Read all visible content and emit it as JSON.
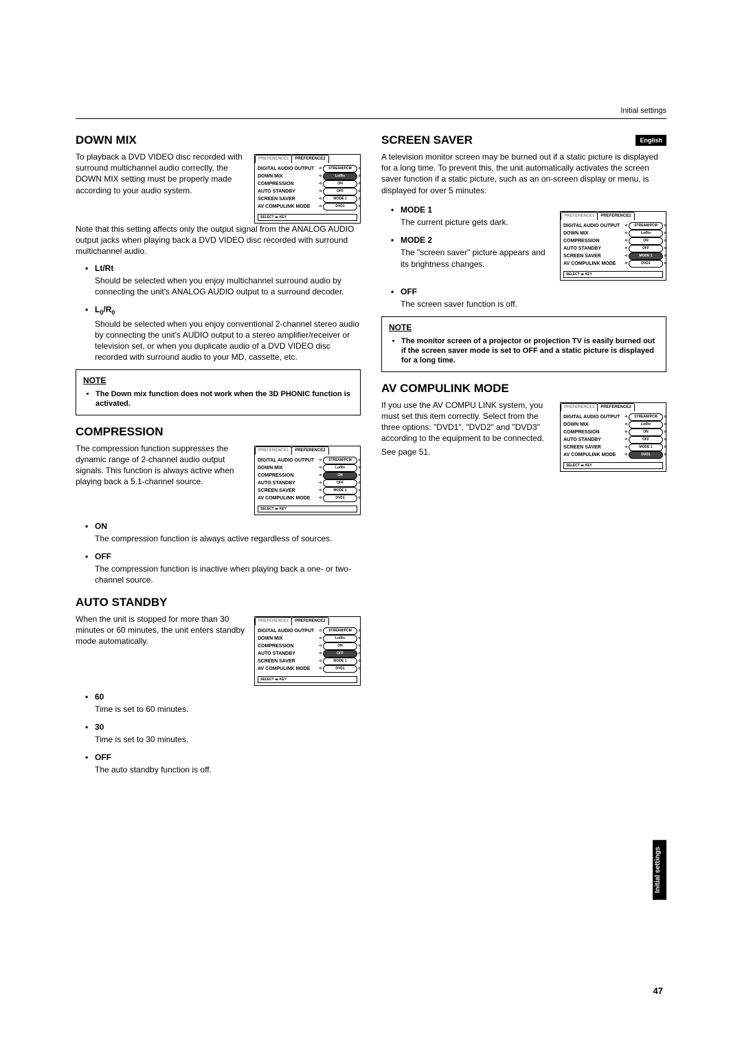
{
  "header": {
    "breadcrumb": "Initial settings",
    "english_badge": "English",
    "side_tab": "Initial settings",
    "page_number": "47"
  },
  "menu_fig": {
    "tab1": "PREFERENCE1",
    "tab2": "PREFERENCE2",
    "rows": [
      {
        "label": "DIGITAL AUDIO OUTPUT",
        "value": "STREAM/PCM"
      },
      {
        "label": "DOWN MIX",
        "value": "Lo/Ro"
      },
      {
        "label": "COMPRESSION",
        "value": "ON"
      },
      {
        "label": "AUTO STANDBY",
        "value": "OFF"
      },
      {
        "label": "SCREEN SAVER",
        "value": "MODE 1"
      },
      {
        "label": "AV COMPULINK MODE",
        "value": "DVD1"
      }
    ],
    "footer": "SELECT ◂▸ KEY"
  },
  "downmix": {
    "title": "DOWN MIX",
    "intro1": "To playback a DVD VIDEO disc recorded with surround multichannel audio correctly, the DOWN MIX setting must be properly made according to your audio system.",
    "intro2": "Note that this setting affects only the output signal from the ANALOG AUDIO output jacks when playing back a DVD VIDEO disc recorded with surround multichannel audio.",
    "items": [
      {
        "label": "Lt/Rt",
        "body": "Should be selected when you enjoy multichannel surround audio by connecting the unit's ANALOG AUDIO output to a surround decoder."
      },
      {
        "label_html": "L<span class=\"sub0\">0</span>/R<span class=\"sub0\">0</span>",
        "body": "Should be selected when you enjoy conventional 2-channel stereo audio by connecting the unit's AUDIO output to a stereo amplifier/receiver or television set, or when you duplicate audio of a DVD VIDEO disc recorded with surround audio to your MD, cassette, etc."
      }
    ],
    "note_title": "NOTE",
    "note_body": "The Down mix function does not work when the 3D PHONIC function is activated."
  },
  "compression": {
    "title": "COMPRESSION",
    "intro": "The compression function suppresses the dynamic range of 2-channel audio output signals. This function is always active when playing back a 5.1-channel source.",
    "items": [
      {
        "label": "ON",
        "body": "The compression function is always active regardless of sources."
      },
      {
        "label": "OFF",
        "body": "The compression function is inactive when playing back a one- or two-channel source."
      }
    ]
  },
  "autostandby": {
    "title": "AUTO STANDBY",
    "intro": "When the unit is stopped for more than 30 minutes or 60 minutes, the unit enters standby mode automatically.",
    "items": [
      {
        "label": "60",
        "body": "Time is set to 60 minutes."
      },
      {
        "label": "30",
        "body": "Time is set to 30 minutes."
      },
      {
        "label": "OFF",
        "body": "The auto standby function is off."
      }
    ]
  },
  "screensaver": {
    "title": "SCREEN SAVER",
    "intro": "A television monitor screen may be burned out if a static picture is displayed for a long time.  To prevent this, the unit automatically activates the screen saver function if a static picture, such as an on-screen display or menu, is displayed for over 5 minutes.",
    "items": [
      {
        "label": "MODE 1",
        "body": "The current picture gets dark."
      },
      {
        "label": "MODE 2",
        "body": "The \"screen saver\" picture appears and its brightness changes."
      },
      {
        "label": "OFF",
        "body": "The screen saver function is off."
      }
    ],
    "note_title": "NOTE",
    "note_body": "The monitor screen of a projector or projection TV is easily burned out if the screen saver mode is set to OFF and a static picture is displayed for a long time."
  },
  "avcompu": {
    "title": "AV COMPULINK MODE",
    "intro": "If you use the AV COMPU LINK system, you must set this item correctly. Select from the three options: \"DVD1\", \"DVD2\" and \"DVD3\" according to the equipment to be connected.",
    "intro2": "See page 51."
  }
}
